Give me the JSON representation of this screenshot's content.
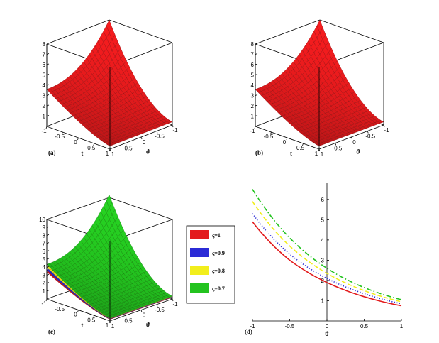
{
  "panels": {
    "a": {
      "label": "(a)"
    },
    "b": {
      "label": "(b)"
    },
    "c": {
      "label": "(c)"
    },
    "d": {
      "label": "(d)"
    }
  },
  "axis_symbols": {
    "t": "t",
    "theta": "ϑ"
  },
  "colors": {
    "red": "#e31a1c",
    "blue": "#2b2bd6",
    "yellow": "#f2ee1c",
    "green": "#23c31f"
  },
  "chart_data": [
    {
      "panel": "a",
      "type": "surface3d",
      "xlabel": "t",
      "ylabel": "ϑ",
      "x_ticks": [
        "-1",
        "-0.5",
        "0",
        "0.5",
        "1"
      ],
      "y_ticks": [
        "1",
        "0.5",
        "0",
        "-0.5",
        "-1"
      ],
      "z_ticks": [
        "1",
        "2",
        "3",
        "4",
        "5",
        "6",
        "7",
        "8"
      ],
      "zlim": [
        0,
        8
      ],
      "series": [
        {
          "color": "#e31a1c",
          "z_at_corners": {
            "t=-1,theta=1": 0.3,
            "t=1,theta=1": 0.3,
            "t=-1,theta=-1": 3.6,
            "t=1,theta=-1": 8.0
          }
        }
      ]
    },
    {
      "panel": "b",
      "type": "surface3d",
      "xlabel": "t",
      "ylabel": "ϑ",
      "x_ticks": [
        "-1",
        "-0.5",
        "0",
        "0.5",
        "1"
      ],
      "y_ticks": [
        "1",
        "0.5",
        "0",
        "-0.5",
        "-1"
      ],
      "z_ticks": [
        "1",
        "2",
        "3",
        "4",
        "5",
        "6",
        "7",
        "8"
      ],
      "zlim": [
        0,
        8
      ],
      "series": [
        {
          "color": "#e31a1c",
          "z_at_corners": {
            "t=-1,theta=1": 0.3,
            "t=1,theta=1": 0.3,
            "t=-1,theta=-1": 3.6,
            "t=1,theta=-1": 8.0
          }
        }
      ]
    },
    {
      "panel": "c",
      "type": "surface3d",
      "xlabel": "t",
      "ylabel": "ϑ",
      "x_ticks": [
        "-1",
        "-0.5",
        "0",
        "0.5",
        "1"
      ],
      "y_ticks": [
        "1",
        "0.5",
        "0",
        "-0.5",
        "-1"
      ],
      "z_ticks": [
        "1",
        "2",
        "3",
        "4",
        "5",
        "6",
        "7",
        "8",
        "9",
        "10"
      ],
      "zlim": [
        0,
        10
      ],
      "legend": [
        {
          "name": "ς=1",
          "color": "#e31a1c"
        },
        {
          "name": "ς=0.9",
          "color": "#2b2bd6"
        },
        {
          "name": "ς=0.8",
          "color": "#f2ee1c"
        },
        {
          "name": "ς=0.7",
          "color": "#23c31f"
        }
      ]
    },
    {
      "panel": "d",
      "type": "line",
      "xlabel": "ϑ",
      "xlim": [
        -1,
        1
      ],
      "ylim": [
        0,
        6.8
      ],
      "x_ticks": [
        "-1",
        "-0.5",
        "0",
        "0.5",
        "1"
      ],
      "y_ticks": [
        "1",
        "2",
        "3",
        "4",
        "5",
        "6"
      ],
      "series": [
        {
          "name": "ς=1",
          "color": "#e31a1c",
          "dash": "solid",
          "x": [
            -1,
            -0.5,
            0,
            0.5,
            1
          ],
          "y": [
            4.9,
            3.0,
            1.9,
            1.2,
            0.75
          ]
        },
        {
          "name": "ς=0.9",
          "color": "#2b2bd6",
          "dash": "dot",
          "x": [
            -1,
            -0.5,
            0,
            0.5,
            1
          ],
          "y": [
            5.3,
            3.3,
            2.1,
            1.35,
            0.85
          ]
        },
        {
          "name": "ς=0.8",
          "color": "#f2ee1c",
          "dash": "dash",
          "x": [
            -1,
            -0.5,
            0,
            0.5,
            1
          ],
          "y": [
            5.9,
            3.7,
            2.35,
            1.5,
            0.95
          ]
        },
        {
          "name": "ς=0.7",
          "color": "#23c31f",
          "dash": "dashdot",
          "x": [
            -1,
            -0.5,
            0,
            0.5,
            1
          ],
          "y": [
            6.5,
            4.1,
            2.6,
            1.65,
            1.05
          ]
        }
      ]
    }
  ]
}
